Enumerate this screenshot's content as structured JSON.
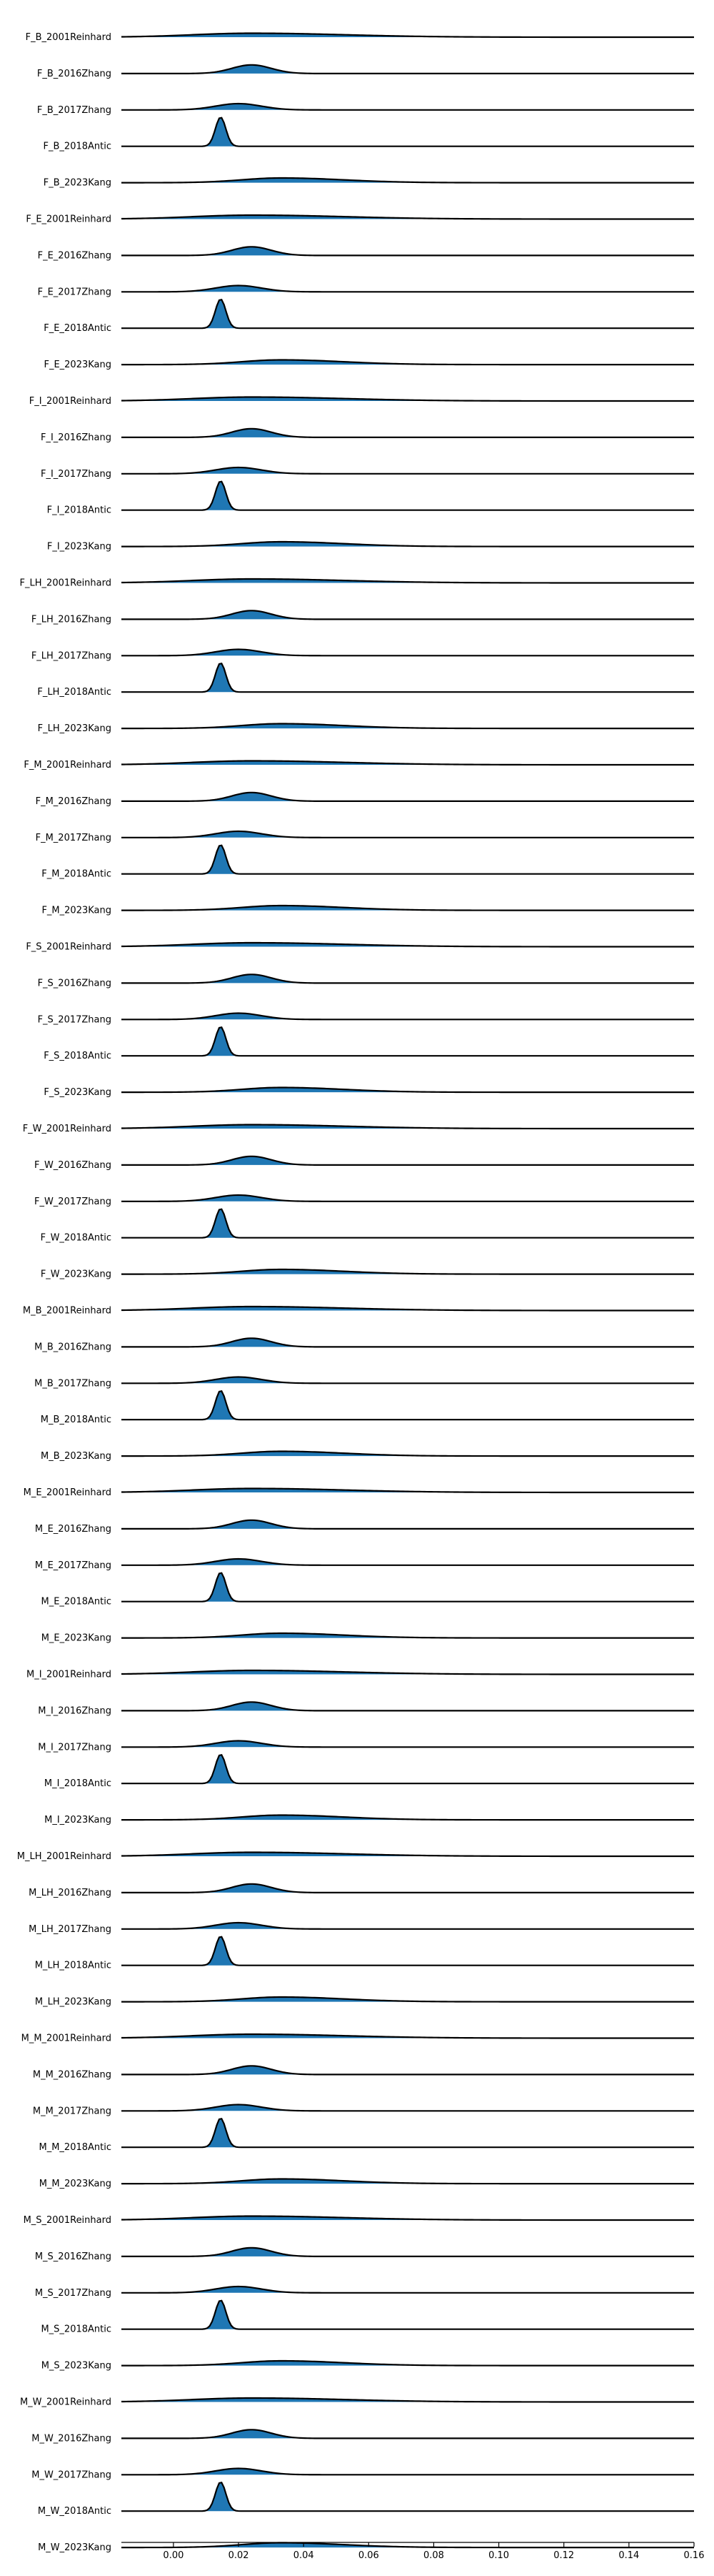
{
  "chart_data": {
    "type": "area",
    "chart_kind": "ridgeline",
    "title": "",
    "xlabel": "",
    "ylabel": "",
    "xlim": [
      -0.016,
      0.16
    ],
    "xticks": [
      0.0,
      0.02,
      0.04,
      0.06,
      0.08,
      0.1,
      0.12,
      0.14,
      0.16
    ],
    "xtick_labels": [
      "0.00",
      "0.02",
      "0.04",
      "0.06",
      "0.08",
      "0.10",
      "0.12",
      "0.14",
      "0.16"
    ],
    "grid": false,
    "fill_color": "#1f77b4",
    "line_color": "#000000",
    "series": [
      {
        "name": "F_B_2001Reinhard",
        "peak_x": 0.024,
        "peak_height": 0.25,
        "width": 0.018
      },
      {
        "name": "F_B_2016Zhang",
        "peak_x": 0.024,
        "peak_height": 0.55,
        "width": 0.006
      },
      {
        "name": "F_B_2017Zhang",
        "peak_x": 0.02,
        "peak_height": 0.4,
        "width": 0.007
      },
      {
        "name": "F_B_2018Antic",
        "peak_x": 0.0145,
        "peak_height": 1.85,
        "width": 0.0016
      },
      {
        "name": "F_B_2023Kang",
        "peak_x": 0.033,
        "peak_height": 0.3,
        "width": 0.012
      },
      {
        "name": "F_E_2001Reinhard",
        "peak_x": 0.024,
        "peak_height": 0.25,
        "width": 0.018
      },
      {
        "name": "F_E_2016Zhang",
        "peak_x": 0.024,
        "peak_height": 0.55,
        "width": 0.006
      },
      {
        "name": "F_E_2017Zhang",
        "peak_x": 0.02,
        "peak_height": 0.4,
        "width": 0.007
      },
      {
        "name": "F_E_2018Antic",
        "peak_x": 0.0145,
        "peak_height": 1.85,
        "width": 0.0016
      },
      {
        "name": "F_E_2023Kang",
        "peak_x": 0.033,
        "peak_height": 0.3,
        "width": 0.012
      },
      {
        "name": "F_I_2001Reinhard",
        "peak_x": 0.024,
        "peak_height": 0.25,
        "width": 0.018
      },
      {
        "name": "F_I_2016Zhang",
        "peak_x": 0.024,
        "peak_height": 0.55,
        "width": 0.006
      },
      {
        "name": "F_I_2017Zhang",
        "peak_x": 0.02,
        "peak_height": 0.4,
        "width": 0.007
      },
      {
        "name": "F_I_2018Antic",
        "peak_x": 0.0145,
        "peak_height": 1.85,
        "width": 0.0016
      },
      {
        "name": "F_I_2023Kang",
        "peak_x": 0.033,
        "peak_height": 0.3,
        "width": 0.012
      },
      {
        "name": "F_LH_2001Reinhard",
        "peak_x": 0.024,
        "peak_height": 0.25,
        "width": 0.018
      },
      {
        "name": "F_LH_2016Zhang",
        "peak_x": 0.024,
        "peak_height": 0.55,
        "width": 0.006
      },
      {
        "name": "F_LH_2017Zhang",
        "peak_x": 0.02,
        "peak_height": 0.4,
        "width": 0.007
      },
      {
        "name": "F_LH_2018Antic",
        "peak_x": 0.0145,
        "peak_height": 1.85,
        "width": 0.0016
      },
      {
        "name": "F_LH_2023Kang",
        "peak_x": 0.033,
        "peak_height": 0.3,
        "width": 0.012
      },
      {
        "name": "F_M_2001Reinhard",
        "peak_x": 0.024,
        "peak_height": 0.25,
        "width": 0.018
      },
      {
        "name": "F_M_2016Zhang",
        "peak_x": 0.024,
        "peak_height": 0.55,
        "width": 0.006
      },
      {
        "name": "F_M_2017Zhang",
        "peak_x": 0.02,
        "peak_height": 0.4,
        "width": 0.007
      },
      {
        "name": "F_M_2018Antic",
        "peak_x": 0.0145,
        "peak_height": 1.85,
        "width": 0.0016
      },
      {
        "name": "F_M_2023Kang",
        "peak_x": 0.033,
        "peak_height": 0.3,
        "width": 0.012
      },
      {
        "name": "F_S_2001Reinhard",
        "peak_x": 0.024,
        "peak_height": 0.25,
        "width": 0.018
      },
      {
        "name": "F_S_2016Zhang",
        "peak_x": 0.024,
        "peak_height": 0.55,
        "width": 0.006
      },
      {
        "name": "F_S_2017Zhang",
        "peak_x": 0.02,
        "peak_height": 0.4,
        "width": 0.007
      },
      {
        "name": "F_S_2018Antic",
        "peak_x": 0.0145,
        "peak_height": 1.85,
        "width": 0.0016
      },
      {
        "name": "F_S_2023Kang",
        "peak_x": 0.033,
        "peak_height": 0.3,
        "width": 0.012
      },
      {
        "name": "F_W_2001Reinhard",
        "peak_x": 0.024,
        "peak_height": 0.25,
        "width": 0.018
      },
      {
        "name": "F_W_2016Zhang",
        "peak_x": 0.024,
        "peak_height": 0.55,
        "width": 0.006
      },
      {
        "name": "F_W_2017Zhang",
        "peak_x": 0.02,
        "peak_height": 0.4,
        "width": 0.007
      },
      {
        "name": "F_W_2018Antic",
        "peak_x": 0.0145,
        "peak_height": 1.85,
        "width": 0.0016
      },
      {
        "name": "F_W_2023Kang",
        "peak_x": 0.033,
        "peak_height": 0.3,
        "width": 0.012
      },
      {
        "name": "M_B_2001Reinhard",
        "peak_x": 0.024,
        "peak_height": 0.25,
        "width": 0.018
      },
      {
        "name": "M_B_2016Zhang",
        "peak_x": 0.024,
        "peak_height": 0.55,
        "width": 0.006
      },
      {
        "name": "M_B_2017Zhang",
        "peak_x": 0.02,
        "peak_height": 0.4,
        "width": 0.007
      },
      {
        "name": "M_B_2018Antic",
        "peak_x": 0.0145,
        "peak_height": 1.85,
        "width": 0.0016
      },
      {
        "name": "M_B_2023Kang",
        "peak_x": 0.033,
        "peak_height": 0.3,
        "width": 0.012
      },
      {
        "name": "M_E_2001Reinhard",
        "peak_x": 0.024,
        "peak_height": 0.25,
        "width": 0.018
      },
      {
        "name": "M_E_2016Zhang",
        "peak_x": 0.024,
        "peak_height": 0.55,
        "width": 0.006
      },
      {
        "name": "M_E_2017Zhang",
        "peak_x": 0.02,
        "peak_height": 0.4,
        "width": 0.007
      },
      {
        "name": "M_E_2018Antic",
        "peak_x": 0.0145,
        "peak_height": 1.85,
        "width": 0.0016
      },
      {
        "name": "M_E_2023Kang",
        "peak_x": 0.033,
        "peak_height": 0.3,
        "width": 0.012
      },
      {
        "name": "M_I_2001Reinhard",
        "peak_x": 0.024,
        "peak_height": 0.25,
        "width": 0.018
      },
      {
        "name": "M_I_2016Zhang",
        "peak_x": 0.024,
        "peak_height": 0.55,
        "width": 0.006
      },
      {
        "name": "M_I_2017Zhang",
        "peak_x": 0.02,
        "peak_height": 0.4,
        "width": 0.007
      },
      {
        "name": "M_I_2018Antic",
        "peak_x": 0.0145,
        "peak_height": 1.85,
        "width": 0.0016
      },
      {
        "name": "M_I_2023Kang",
        "peak_x": 0.033,
        "peak_height": 0.3,
        "width": 0.012
      },
      {
        "name": "M_LH_2001Reinhard",
        "peak_x": 0.024,
        "peak_height": 0.25,
        "width": 0.018
      },
      {
        "name": "M_LH_2016Zhang",
        "peak_x": 0.024,
        "peak_height": 0.55,
        "width": 0.006
      },
      {
        "name": "M_LH_2017Zhang",
        "peak_x": 0.02,
        "peak_height": 0.4,
        "width": 0.007
      },
      {
        "name": "M_LH_2018Antic",
        "peak_x": 0.0145,
        "peak_height": 1.85,
        "width": 0.0016
      },
      {
        "name": "M_LH_2023Kang",
        "peak_x": 0.033,
        "peak_height": 0.3,
        "width": 0.012
      },
      {
        "name": "M_M_2001Reinhard",
        "peak_x": 0.024,
        "peak_height": 0.25,
        "width": 0.018
      },
      {
        "name": "M_M_2016Zhang",
        "peak_x": 0.024,
        "peak_height": 0.55,
        "width": 0.006
      },
      {
        "name": "M_M_2017Zhang",
        "peak_x": 0.02,
        "peak_height": 0.4,
        "width": 0.007
      },
      {
        "name": "M_M_2018Antic",
        "peak_x": 0.0145,
        "peak_height": 1.85,
        "width": 0.0016
      },
      {
        "name": "M_M_2023Kang",
        "peak_x": 0.033,
        "peak_height": 0.3,
        "width": 0.012
      },
      {
        "name": "M_S_2001Reinhard",
        "peak_x": 0.024,
        "peak_height": 0.25,
        "width": 0.018
      },
      {
        "name": "M_S_2016Zhang",
        "peak_x": 0.024,
        "peak_height": 0.55,
        "width": 0.006
      },
      {
        "name": "M_S_2017Zhang",
        "peak_x": 0.02,
        "peak_height": 0.4,
        "width": 0.007
      },
      {
        "name": "M_S_2018Antic",
        "peak_x": 0.0145,
        "peak_height": 1.85,
        "width": 0.0016
      },
      {
        "name": "M_S_2023Kang",
        "peak_x": 0.033,
        "peak_height": 0.3,
        "width": 0.012
      },
      {
        "name": "M_W_2001Reinhard",
        "peak_x": 0.024,
        "peak_height": 0.25,
        "width": 0.018
      },
      {
        "name": "M_W_2016Zhang",
        "peak_x": 0.024,
        "peak_height": 0.55,
        "width": 0.006
      },
      {
        "name": "M_W_2017Zhang",
        "peak_x": 0.02,
        "peak_height": 0.4,
        "width": 0.007
      },
      {
        "name": "M_W_2018Antic",
        "peak_x": 0.0145,
        "peak_height": 1.85,
        "width": 0.0016
      },
      {
        "name": "M_W_2023Kang",
        "peak_x": 0.033,
        "peak_height": 0.3,
        "width": 0.012
      }
    ]
  }
}
